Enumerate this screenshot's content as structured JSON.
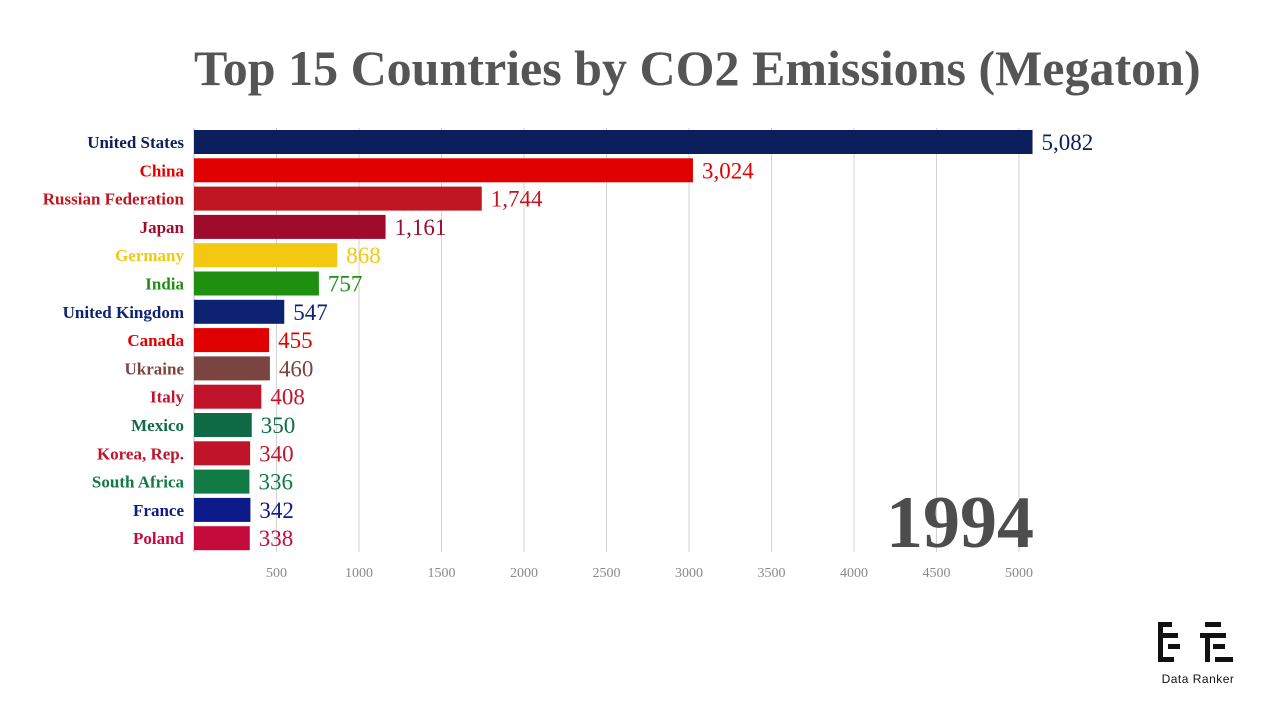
{
  "chart_data": {
    "type": "bar",
    "orientation": "horizontal",
    "title": "Top 15 Countries by CO2 Emissions (Megaton)",
    "year": "1994",
    "categories": [
      "United States",
      "China",
      "Russian Federation",
      "Japan",
      "Germany",
      "India",
      "United Kingdom",
      "Canada",
      "Ukraine",
      "Italy",
      "Mexico",
      "Korea, Rep.",
      "South Africa",
      "France",
      "Poland"
    ],
    "values": [
      5082,
      3024,
      1744,
      1161,
      868,
      757,
      547,
      455,
      460,
      408,
      350,
      340,
      336,
      342,
      338
    ],
    "value_labels": [
      "5,082",
      "3,024",
      "1,744",
      "1,161",
      "868",
      "757",
      "547",
      "455",
      "460",
      "408",
      "350",
      "340",
      "336",
      "342",
      "338"
    ],
    "colors": [
      "#0a1f5c",
      "#e00000",
      "#c01622",
      "#9e0b2c",
      "#f2c811",
      "#1f8f12",
      "#0d2270",
      "#e00000",
      "#7a4440",
      "#c0142b",
      "#0e6b45",
      "#c0142b",
      "#127a45",
      "#0c1a8a",
      "#c40b3c"
    ],
    "xticks": [
      500,
      1000,
      1500,
      2000,
      2500,
      3000,
      3500,
      4000,
      4500,
      5000
    ],
    "xlim": [
      0,
      5082
    ],
    "grid": true,
    "xlabel": "",
    "ylabel": ""
  },
  "brand": {
    "name": "Data Ranker"
  }
}
